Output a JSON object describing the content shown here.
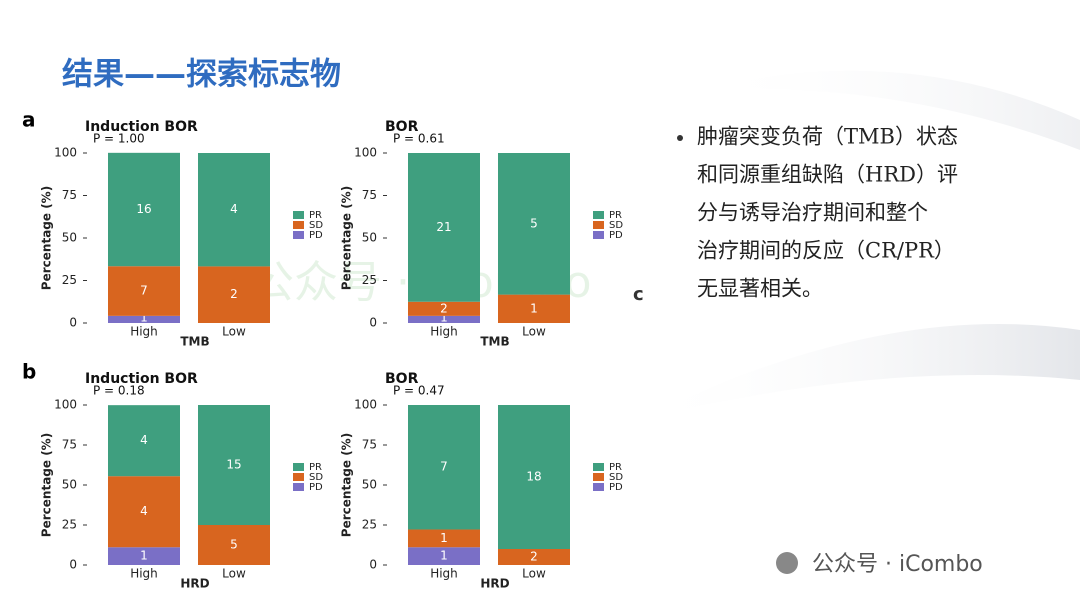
{
  "slide_title": "结果——探索标志物",
  "bullet": {
    "lines": [
      "肿瘤突变负荷（TMB）状态",
      "和同源重组缺陷（HRD）评",
      "分与诱导治疗期间和整个",
      "治疗期间的反应（CR/PR）",
      "无显著相关。"
    ]
  },
  "stray_letter": "c",
  "watermarks": [
    "公众号 · iCombo",
    "公众号 · iCombo"
  ],
  "chart_data": [
    {
      "type": "bar",
      "stacked": true,
      "panel": "a",
      "title": "Induction BOR",
      "subtitle": "P = 1.00",
      "xlabel": "TMB",
      "ylabel": "Percentage (%)",
      "categories": [
        "High",
        "Low"
      ],
      "ylim": [
        0,
        100
      ],
      "yticks": [
        0,
        25,
        50,
        75,
        100
      ],
      "series": [
        {
          "name": "PR",
          "color": "#3f9f7f",
          "values": [
            66.7,
            66.7
          ],
          "counts": [
            16,
            4
          ]
        },
        {
          "name": "SD",
          "color": "#d8651f",
          "values": [
            29.2,
            33.3
          ],
          "counts": [
            7,
            2
          ]
        },
        {
          "name": "PD",
          "color": "#7a6fc6",
          "values": [
            4.2,
            0
          ],
          "counts": [
            1,
            null
          ]
        }
      ]
    },
    {
      "type": "bar",
      "stacked": true,
      "title": "BOR",
      "subtitle": "P = 0.61",
      "xlabel": "TMB",
      "ylabel": "Percentage (%)",
      "categories": [
        "High",
        "Low"
      ],
      "ylim": [
        0,
        100
      ],
      "yticks": [
        0,
        25,
        50,
        75,
        100
      ],
      "series": [
        {
          "name": "PR",
          "color": "#3f9f7f",
          "values": [
            87.5,
            83.3
          ],
          "counts": [
            21,
            5
          ]
        },
        {
          "name": "SD",
          "color": "#d8651f",
          "values": [
            8.3,
            16.7
          ],
          "counts": [
            2,
            1
          ]
        },
        {
          "name": "PD",
          "color": "#7a6fc6",
          "values": [
            4.2,
            0
          ],
          "counts": [
            1,
            null
          ]
        }
      ]
    },
    {
      "type": "bar",
      "stacked": true,
      "panel": "b",
      "title": "Induction BOR",
      "subtitle": "P = 0.18",
      "xlabel": "HRD",
      "ylabel": "Percentage (%)",
      "categories": [
        "High",
        "Low"
      ],
      "ylim": [
        0,
        100
      ],
      "yticks": [
        0,
        25,
        50,
        75,
        100
      ],
      "series": [
        {
          "name": "PR",
          "color": "#3f9f7f",
          "values": [
            44.4,
            75
          ],
          "counts": [
            4,
            15
          ]
        },
        {
          "name": "SD",
          "color": "#d8651f",
          "values": [
            44.4,
            25
          ],
          "counts": [
            4,
            5
          ]
        },
        {
          "name": "PD",
          "color": "#7a6fc6",
          "values": [
            11.1,
            0
          ],
          "counts": [
            1,
            null
          ]
        }
      ]
    },
    {
      "type": "bar",
      "stacked": true,
      "title": "BOR",
      "subtitle": "P = 0.47",
      "xlabel": "HRD",
      "ylabel": "Percentage (%)",
      "categories": [
        "High",
        "Low"
      ],
      "ylim": [
        0,
        100
      ],
      "yticks": [
        0,
        25,
        50,
        75,
        100
      ],
      "series": [
        {
          "name": "PR",
          "color": "#3f9f7f",
          "values": [
            77.8,
            90
          ],
          "counts": [
            7,
            18
          ]
        },
        {
          "name": "SD",
          "color": "#d8651f",
          "values": [
            11.1,
            10
          ],
          "counts": [
            1,
            2
          ]
        },
        {
          "name": "PD",
          "color": "#7a6fc6",
          "values": [
            11.1,
            0
          ],
          "counts": [
            1,
            null
          ]
        }
      ]
    }
  ]
}
